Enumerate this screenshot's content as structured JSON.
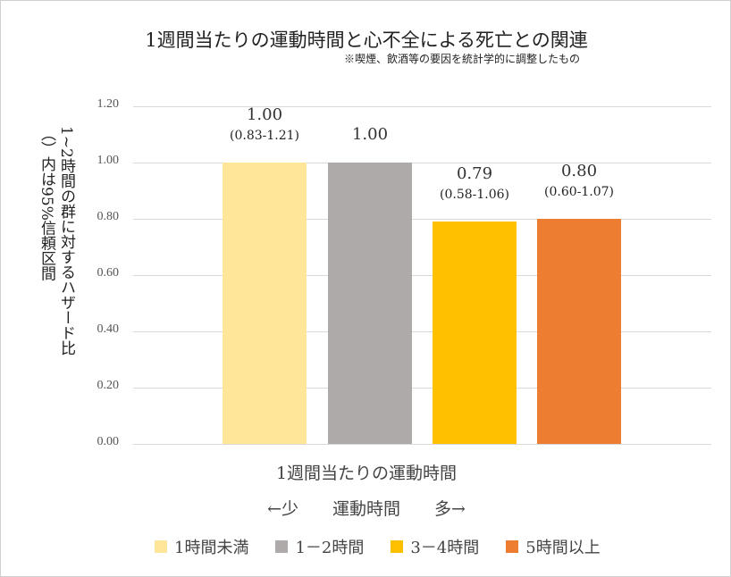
{
  "chart_data": {
    "type": "bar",
    "title": "1週間当たりの運動時間と心不全による死亡との関連",
    "subtitle": "※喫煙、飲酒等の要因を統計学的に調整したもの",
    "ylabel_line1": "1~2時間の群に対するハザード比",
    "ylabel_line2": "（）内は95%信頼区間",
    "xlabel": "1週間当たりの運動時間",
    "xlabel_sub": "←少　　運動時間　　多→",
    "ylim": [
      0,
      1.2
    ],
    "yticks": [
      "0.00",
      "0.20",
      "0.40",
      "0.60",
      "0.80",
      "1.00",
      "1.20"
    ],
    "grid": true,
    "legend_position": "bottom",
    "series": [
      {
        "name": "1時間未満",
        "value": 1.0,
        "label": "1.00",
        "ci": "(0.83-1.21)",
        "color": "#FFE699"
      },
      {
        "name": "1－2時間",
        "value": 1.0,
        "label": "1.00",
        "ci": "",
        "color": "#AEAAAA"
      },
      {
        "name": "3－4時間",
        "value": 0.79,
        "label": "0.79",
        "ci": "(0.58-1.06)",
        "color": "#FFC000"
      },
      {
        "name": "5時間以上",
        "value": 0.8,
        "label": "0.80",
        "ci": "(0.60-1.07)",
        "color": "#ED7D31"
      }
    ]
  }
}
